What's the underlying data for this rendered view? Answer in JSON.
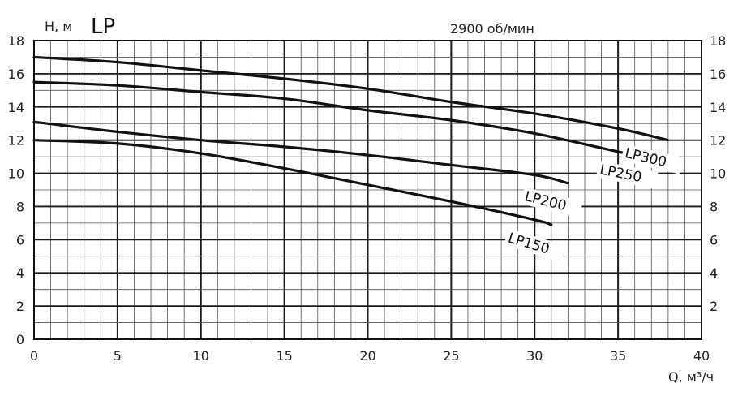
{
  "chart_data": {
    "type": "line",
    "title": "LP",
    "subtitle": "2900 об/мин",
    "ylabel": "Н, м",
    "xlabel": "Q, м³/ч",
    "xlim": [
      0,
      40
    ],
    "ylim": [
      0,
      18
    ],
    "x_ticks": [
      "0",
      "5",
      "10",
      "15",
      "20",
      "25",
      "30",
      "35",
      "40"
    ],
    "y_ticks_left": [
      "0",
      "2",
      "4",
      "6",
      "8",
      "10",
      "12",
      "14",
      "16",
      "18"
    ],
    "y_ticks_right": [
      "2",
      "4",
      "6",
      "8",
      "10",
      "12",
      "14",
      "16",
      "18"
    ],
    "grid": true,
    "series": [
      {
        "name": "LP300",
        "points": [
          [
            0,
            17.0
          ],
          [
            5,
            16.7
          ],
          [
            10,
            16.2
          ],
          [
            15,
            15.7
          ],
          [
            20,
            15.1
          ],
          [
            25,
            14.3
          ],
          [
            30,
            13.6
          ],
          [
            35,
            12.7
          ],
          [
            38,
            12.0
          ]
        ]
      },
      {
        "name": "LP250",
        "points": [
          [
            0,
            15.5
          ],
          [
            5,
            15.3
          ],
          [
            10,
            14.9
          ],
          [
            15,
            14.5
          ],
          [
            20,
            13.8
          ],
          [
            25,
            13.2
          ],
          [
            30,
            12.4
          ],
          [
            35,
            11.3
          ],
          [
            36.5,
            11.0
          ]
        ]
      },
      {
        "name": "LP200",
        "points": [
          [
            0,
            13.1
          ],
          [
            5,
            12.5
          ],
          [
            10,
            12.0
          ],
          [
            15,
            11.6
          ],
          [
            20,
            11.1
          ],
          [
            25,
            10.5
          ],
          [
            30,
            9.9
          ],
          [
            32,
            9.4
          ]
        ]
      },
      {
        "name": "LP150",
        "points": [
          [
            0,
            12.0
          ],
          [
            5,
            11.8
          ],
          [
            10,
            11.2
          ],
          [
            15,
            10.3
          ],
          [
            20,
            9.3
          ],
          [
            25,
            8.3
          ],
          [
            30,
            7.2
          ],
          [
            31,
            6.9
          ]
        ]
      }
    ]
  }
}
